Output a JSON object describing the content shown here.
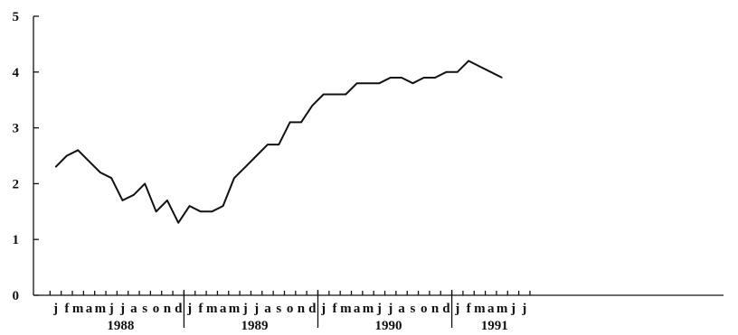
{
  "chart_data": {
    "type": "line",
    "title": "",
    "xlabel": "",
    "ylabel": "",
    "ylim": [
      0,
      5
    ],
    "yticks": [
      "0",
      "1",
      "2",
      "3",
      "4",
      "5"
    ],
    "grid": false,
    "month_labels": [
      "j",
      "f",
      "m",
      "a",
      "m",
      "j",
      "j",
      "a",
      "s",
      "o",
      "n",
      "d",
      "j",
      "f",
      "m",
      "a",
      "m",
      "j",
      "j",
      "a",
      "s",
      "o",
      "n",
      "d",
      "j",
      "f",
      "m",
      "a",
      "m",
      "j",
      "j",
      "a",
      "s",
      "o",
      "n",
      "d",
      "j",
      "f",
      "m",
      "a",
      "m",
      "j",
      "j"
    ],
    "years": [
      "1988",
      "1989",
      "1990",
      "1991"
    ],
    "series": [
      {
        "values": [
          2.3,
          2.5,
          2.6,
          2.4,
          2.2,
          2.1,
          1.7,
          1.8,
          2.0,
          1.5,
          1.7,
          1.3,
          1.6,
          1.5,
          1.5,
          1.6,
          2.1,
          2.3,
          2.5,
          2.7,
          2.7,
          3.1,
          3.1,
          3.4,
          3.6,
          3.6,
          3.6,
          3.8,
          3.8,
          3.8,
          3.9,
          3.9,
          3.8,
          3.9,
          3.9,
          4.0,
          4.0,
          4.2,
          4.1,
          4.0,
          3.9
        ]
      }
    ]
  }
}
